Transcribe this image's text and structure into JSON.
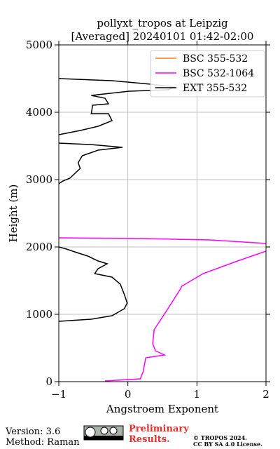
{
  "chart_data": {
    "type": "line",
    "title": [
      "pollyxt_tropos at Leipzig",
      "[Averaged] 20240101 01:42-02:00"
    ],
    "x_label": "Angstroem Exponent",
    "y_label": "Height (m)",
    "xlim": [
      -1,
      2
    ],
    "ylim": [
      0,
      5000
    ],
    "xticks": [
      {
        "value": -1,
        "label": "−1"
      },
      0,
      1,
      2
    ],
    "yticks": [
      0,
      1000,
      2000,
      3000,
      4000,
      5000
    ],
    "grid": true,
    "legend": "upper right",
    "series": [
      {
        "name": "BSC 355-532",
        "color": "#ff7f0e",
        "x": [],
        "y": []
      },
      {
        "name": "BSC 532-1064",
        "color": "#ff00ff",
        "x": [
          -0.33,
          0.18,
          0.22,
          0.26,
          0.53,
          0.4,
          0.36,
          0.38,
          0.58,
          0.76,
          0.78,
          1.09,
          1.59,
          2.0,
          null,
          2.0,
          1.19,
          0.18,
          -1
        ],
        "y": [
          10,
          42,
          146,
          354,
          396,
          458,
          563,
          771,
          1083,
          1375,
          1417,
          1604,
          1792,
          1938,
          null,
          2052,
          2104,
          2125,
          2135
        ]
      },
      {
        "name": "EXT 355-532",
        "color": "#000000",
        "x": [
          -1,
          -0.53,
          -0.23,
          -0.05,
          -0.01,
          -0.05,
          -0.11,
          -0.23,
          -0.48,
          -0.43,
          -0.3,
          -0.43,
          -0.58,
          -0.74,
          -0.89,
          -1,
          null,
          -1,
          -0.94,
          -0.84,
          -0.69,
          -0.72,
          -0.66,
          -0.43,
          -0.08,
          -0.54,
          -1,
          null,
          -1,
          -0.69,
          -0.43,
          -0.23,
          -0.28,
          -0.53,
          -0.51,
          -0.28,
          -0.33,
          -0.53,
          0.02,
          0.58,
          0.68,
          0.33,
          -0.23,
          -1
        ],
        "y": [
          896,
          927,
          979,
          1083,
          1167,
          1292,
          1448,
          1552,
          1604,
          1677,
          1750,
          1792,
          1865,
          1917,
          1969,
          2000,
          null,
          2937,
          2979,
          3021,
          3167,
          3250,
          3354,
          3438,
          3479,
          3521,
          3542,
          null,
          3667,
          3729,
          3792,
          3875,
          3979,
          3979,
          4104,
          4125,
          4208,
          4250,
          4313,
          4333,
          4375,
          4417,
          4469,
          4500
        ]
      }
    ]
  },
  "footer": {
    "version": "Version: 3.6",
    "method": "Method: Raman",
    "notice": [
      "Preliminary",
      "Results."
    ],
    "copyright": "© TROPOS 2024.",
    "license": "CC BY SA 4.0 License."
  }
}
